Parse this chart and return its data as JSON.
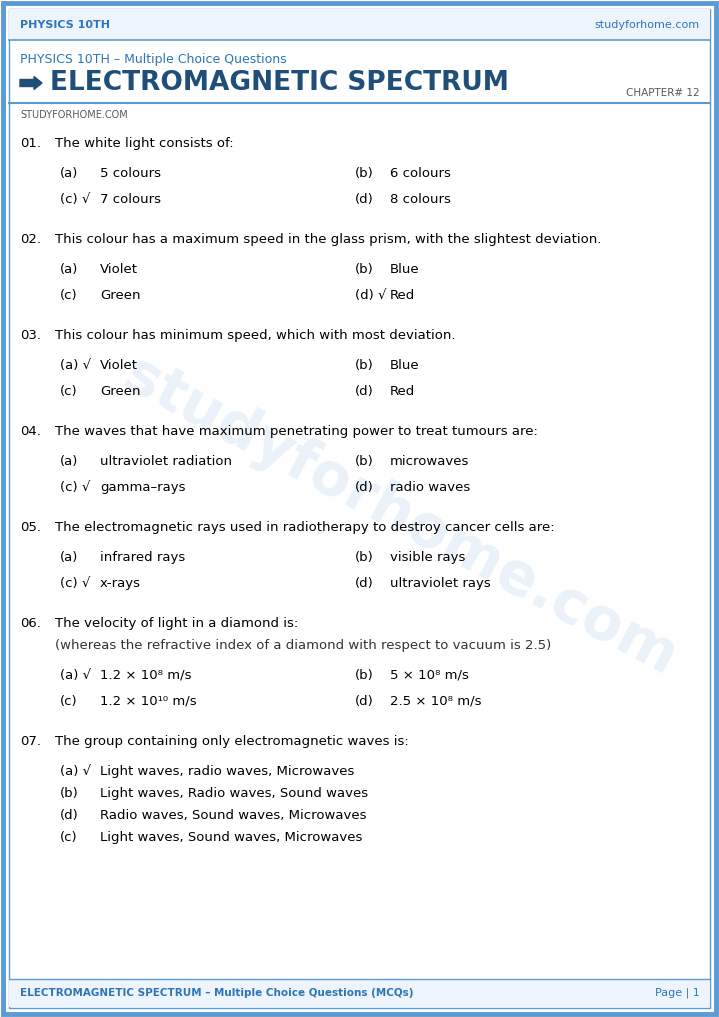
{
  "page_bg": "#ffffff",
  "border_color": "#5b9bd5",
  "header_text_left": "PHYSICS 10TH",
  "header_text_right": "studyforhome.com",
  "header_text_color": "#2e75b6",
  "subheader_text": "PHYSICS 10TH – Multiple Choice Questions",
  "subheader_color": "#2e75b6",
  "chapter_title": "ELECTROMAGNETIC SPECTRUM",
  "chapter_title_color": "#1f4e79",
  "chapter_label": "CHAPTER# 12",
  "chapter_label_color": "#595959",
  "watermark_text": "studyforhome.com",
  "studyforhome_label": "STUDYFORHOME.COM",
  "studyforhome_label_color": "#595959",
  "footer_left": "ELECTROMAGNETIC SPECTRUM – Multiple Choice Questions (MCQs)",
  "footer_right": "Page | 1",
  "footer_color": "#2e75b6",
  "questions": [
    {
      "num": "01.",
      "text": "The white light consists of:",
      "subtext": "",
      "options": [
        {
          "label": "(a)",
          "text": "5 colours"
        },
        {
          "label": "(b)",
          "text": "6 colours"
        },
        {
          "label": "(c) √",
          "text": "7 colours"
        },
        {
          "label": "(d)",
          "text": "8 colours"
        }
      ],
      "layout": "2col"
    },
    {
      "num": "02.",
      "text": "This colour has a maximum speed in the glass prism, with the slightest deviation.",
      "subtext": "",
      "options": [
        {
          "label": "(a)",
          "text": "Violet"
        },
        {
          "label": "(b)",
          "text": "Blue"
        },
        {
          "label": "(c)",
          "text": "Green"
        },
        {
          "label": "(d) √",
          "text": "Red"
        }
      ],
      "layout": "2col"
    },
    {
      "num": "03.",
      "text": "This colour has minimum speed, which with most deviation.",
      "subtext": "",
      "options": [
        {
          "label": "(a) √",
          "text": "Violet"
        },
        {
          "label": "(b)",
          "text": "Blue"
        },
        {
          "label": "(c)",
          "text": "Green"
        },
        {
          "label": "(d)",
          "text": "Red"
        }
      ],
      "layout": "2col"
    },
    {
      "num": "04.",
      "text": "The waves that have maximum penetrating power to treat tumours are:",
      "subtext": "",
      "options": [
        {
          "label": "(a)",
          "text": "ultraviolet radiation"
        },
        {
          "label": "(b)",
          "text": "microwaves"
        },
        {
          "label": "(c) √",
          "text": "gamma–rays"
        },
        {
          "label": "(d)",
          "text": "radio waves"
        }
      ],
      "layout": "2col"
    },
    {
      "num": "05.",
      "text": "The electromagnetic rays used in radiotherapy to destroy cancer cells are:",
      "subtext": "",
      "options": [
        {
          "label": "(a)",
          "text": "infrared rays"
        },
        {
          "label": "(b)",
          "text": "visible rays"
        },
        {
          "label": "(c) √",
          "text": "x-rays"
        },
        {
          "label": "(d)",
          "text": "ultraviolet rays"
        }
      ],
      "layout": "2col"
    },
    {
      "num": "06.",
      "text": "The velocity of light in a diamond is:",
      "subtext": "(whereas the refractive index of a diamond with respect to vacuum is 2.5)",
      "options": [
        {
          "label": "(a) √",
          "text": "1.2 × 10⁸ m/s"
        },
        {
          "label": "(b)",
          "text": "5 × 10⁸ m/s"
        },
        {
          "label": "(c)",
          "text": "1.2 × 10¹⁰ m/s"
        },
        {
          "label": "(d)",
          "text": "2.5 × 10⁸ m/s"
        }
      ],
      "layout": "2col"
    },
    {
      "num": "07.",
      "text": "The group containing only electromagnetic waves is:",
      "subtext": "",
      "options": [
        {
          "label": "(a) √",
          "text": "Light waves, radio waves, Microwaves"
        },
        {
          "label": "(b)",
          "text": "Light waves, Radio waves, Sound waves"
        },
        {
          "label": "(d)",
          "text": "Radio waves, Sound waves, Microwaves"
        },
        {
          "label": "(c)",
          "text": "Light waves, Sound waves, Microwaves"
        }
      ],
      "layout": "1col"
    }
  ]
}
